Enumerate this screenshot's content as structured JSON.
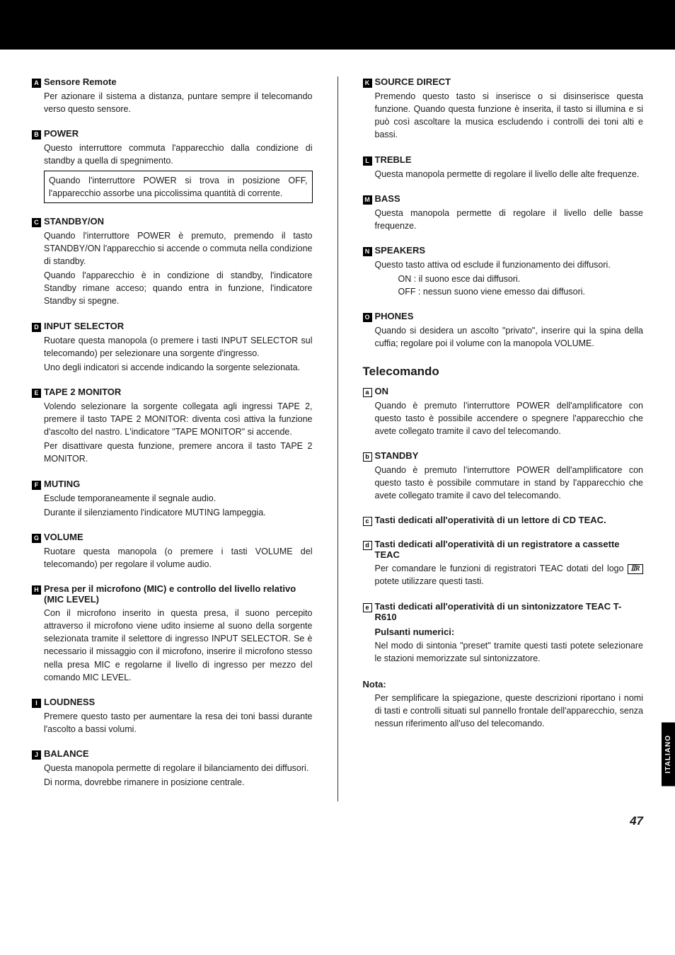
{
  "tab": "ITALIANO",
  "page_number": "47",
  "telecomando_heading": "Telecomando",
  "left": [
    {
      "marker": "A",
      "title": "Sensore Remote",
      "body": [
        "Per azionare il sistema a distanza, puntare sempre il telecomando verso questo sensore."
      ]
    },
    {
      "marker": "B",
      "title": "POWER",
      "body": [
        "Questo interruttore commuta l'apparecchio dalla condizione di standby a quella di spegnimento."
      ],
      "boxed": "Quando l'interruttore POWER si trova in posizione OFF, l'apparecchio assorbe una piccolissima quantità di corrente."
    },
    {
      "marker": "C",
      "title": "STANDBY/ON",
      "body": [
        "Quando l'interruttore POWER è premuto, premendo il tasto STANDBY/ON l'apparecchio si accende o commuta nella condizione di standby.",
        "Quando l'apparecchio è in condizione di standby, l'indicatore Standby rimane acceso; quando entra in funzione, l'indicatore Standby si spegne."
      ]
    },
    {
      "marker": "D",
      "title": "INPUT SELECTOR",
      "body": [
        "Ruotare questa manopola (o premere i tasti INPUT SELECTOR sul telecomando) per selezionare una sorgente d'ingresso.",
        "Uno degli indicatori si accende indicando la sorgente selezionata."
      ]
    },
    {
      "marker": "E",
      "title": "TAPE 2 MONITOR",
      "body": [
        "Volendo selezionare la sorgente collegata agli ingressi TAPE 2, premere il tasto TAPE 2 MONITOR: diventa così attiva la funzione d'ascolto del nastro. L'indicatore \"TAPE MONITOR\" si accende.",
        "Per disattivare questa funzione, premere ancora il tasto TAPE 2 MONITOR."
      ]
    },
    {
      "marker": "F",
      "title": "MUTING",
      "body": [
        "Esclude temporaneamente il segnale audio.",
        "Durante il silenziamento l'indicatore MUTING lampeggia."
      ]
    },
    {
      "marker": "G",
      "title": "VOLUME",
      "body": [
        "Ruotare questa manopola (o premere i tasti VOLUME del telecomando) per regolare il volume audio."
      ]
    },
    {
      "marker": "H",
      "title": "Presa per il microfono (MIC) e controllo del livello relativo (MIC LEVEL)",
      "body": [
        "Con il microfono inserito in questa presa, il suono percepito attraverso il microfono viene udito insieme al suono della sorgente selezionata tramite il selettore di ingresso INPUT SELECTOR. Se è necessario il missaggio con il microfono, inserire il microfono stesso nella presa MIC e regolarne il livello di ingresso per mezzo del comando MIC LEVEL."
      ]
    },
    {
      "marker": "I",
      "title": "LOUDNESS",
      "body": [
        "Premere questo tasto per aumentare la resa dei toni bassi durante l'ascolto a bassi volumi."
      ]
    },
    {
      "marker": "J",
      "title": "BALANCE",
      "body": [
        "Questa manopola permette di regolare il bilanciamento dei diffusori.",
        "Di norma, dovrebbe rimanere in posizione centrale."
      ]
    }
  ],
  "right": [
    {
      "marker": "K",
      "title": "SOURCE DIRECT",
      "body": [
        "Premendo questo tasto si inserisce o si disinserisce questa funzione. Quando questa funzione è inserita, il tasto si illumina e si può così ascoltare la musica escludendo i controlli dei toni alti e bassi."
      ]
    },
    {
      "marker": "L",
      "title": "TREBLE",
      "body": [
        "Questa manopola permette di regolare il livello delle alte frequenze."
      ]
    },
    {
      "marker": "M",
      "title": "BASS",
      "body": [
        "Questa manopola permette di regolare il livello delle basse frequenze."
      ]
    },
    {
      "marker": "N",
      "title": "SPEAKERS",
      "body": [
        "Questo tasto attiva od esclude il funzionamento dei diffusori."
      ],
      "list": [
        "ON : il suono esce dai diffusori.",
        "OFF : nessun suono viene emesso dai diffusori."
      ]
    },
    {
      "marker": "O",
      "title": "PHONES",
      "body": [
        "Quando si desidera un ascolto \"privato\", inserire qui la spina della cuffia; regolare poi il volume con la manopola VOLUME."
      ]
    }
  ],
  "remote": [
    {
      "marker": "a",
      "title": "ON",
      "body": [
        "Quando è premuto l'interruttore POWER dell'amplificatore con questo tasto è possibile accendere o spegnere l'apparecchio che avete collegato tramite il cavo del telecomando."
      ]
    },
    {
      "marker": "b",
      "title": "STANDBY",
      "body": [
        "Quando è premuto l'interruttore POWER dell'amplificatore con questo tasto è possibile commutare in stand by l'apparecchio che avete collegato tramite il cavo del telecomando."
      ]
    },
    {
      "marker": "c",
      "title": "Tasti dedicati all'operatività di un lettore di CD TEAC.",
      "body": []
    },
    {
      "marker": "d",
      "title": "Tasti dedicati all'operatività di un registratore a cassette TEAC",
      "body_pre": "Per comandare le funzioni di registratori TEAC dotati del logo ",
      "body_post": " potete utilizzare questi tasti.",
      "has_logo": true
    },
    {
      "marker": "e",
      "title": "Tasti dedicati all'operatività di un sintonizzatore TEAC T-R610",
      "sub_title": "Pulsanti numerici:",
      "body": [
        "Nel modo di sintonia \"preset\" tramite questi tasti potete selezionare le stazioni memorizzate sul sintonizzatore."
      ]
    }
  ],
  "note": {
    "label": "Nota:",
    "body": "Per semplificare la spiegazione, queste descrizioni riportano i nomi di tasti e controlli situati sul pannello frontale dell'apparecchio, senza nessun riferimento all'uso del telecomando."
  }
}
